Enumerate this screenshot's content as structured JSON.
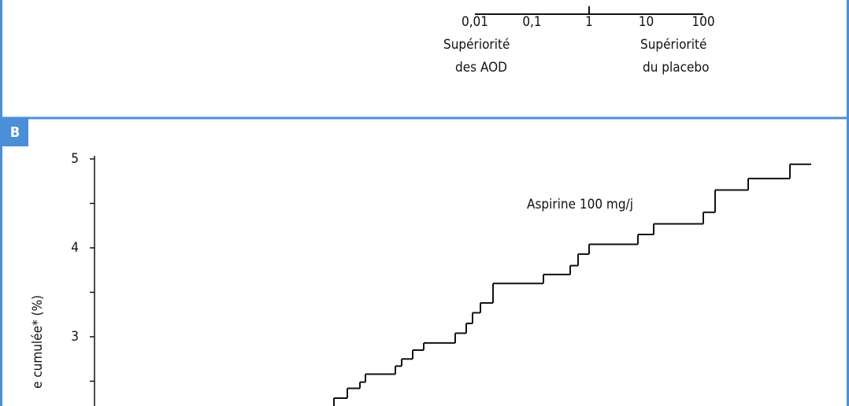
{
  "panel_a": {
    "type": "log-axis",
    "xlim": [
      0.01,
      100
    ],
    "xticks": [
      {
        "value": 0.01,
        "label": "0,01"
      },
      {
        "value": 0.1,
        "label": "0,1"
      },
      1,
      10,
      100
    ],
    "left_label": [
      "Supériorité",
      "des AOD"
    ],
    "right_label": [
      "Supériorité",
      "du placebo"
    ]
  },
  "chart_data": {
    "type": "step",
    "panel_label": "B",
    "ylabel": "e cumulée* (%)",
    "annotation": "Aspirine 100 mg/j",
    "color": "#111111",
    "xlim": [
      0,
      910
    ],
    "ylim": [
      2.2,
      5
    ],
    "yticks": [
      3,
      4,
      5
    ],
    "yminor_ticks": [
      2.5,
      3.5,
      4.5
    ],
    "series": [
      {
        "name": "Aspirine 100 mg/j",
        "color": "#111111",
        "x": [
          304,
          321,
          337,
          344,
          382,
          390,
          404,
          418,
          458,
          472,
          480,
          490,
          506,
          570,
          604,
          614,
          628,
          690,
          710,
          773,
          788,
          830,
          883
        ],
        "values": [
          2.31,
          2.42,
          2.49,
          2.58,
          2.67,
          2.75,
          2.85,
          2.93,
          3.04,
          3.15,
          3.27,
          3.38,
          3.6,
          3.7,
          3.8,
          3.93,
          4.04,
          4.15,
          4.27,
          4.4,
          4.65,
          4.78,
          4.94
        ]
      }
    ]
  }
}
